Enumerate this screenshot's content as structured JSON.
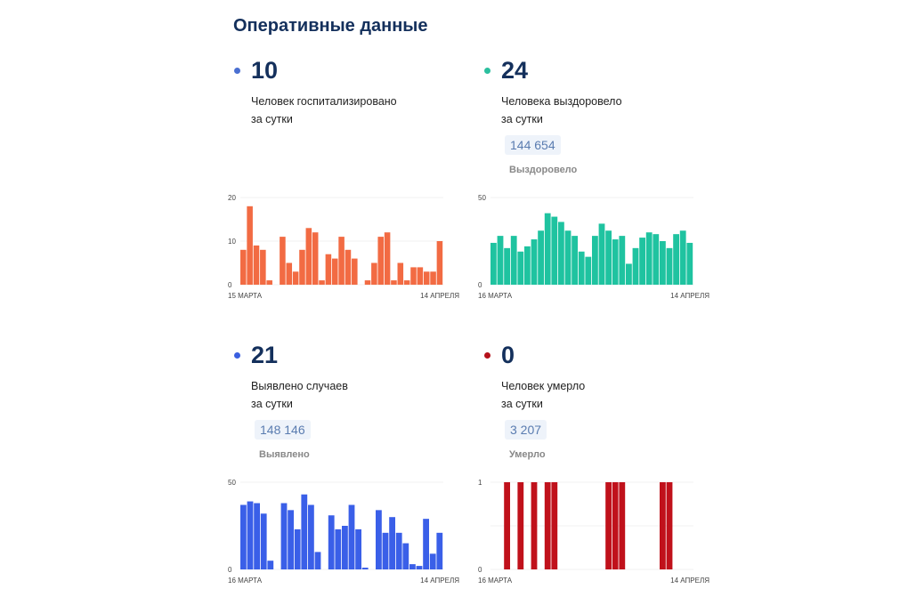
{
  "title": "Оперативные данные",
  "panels": [
    {
      "value": "10",
      "line1": "Человек госпитализировано",
      "line2": "за сутки",
      "dot_color": "#4a6fd1"
    },
    {
      "value": "24",
      "line1": "Человека выздоровело",
      "line2": "за сутки",
      "total": "144 654",
      "total_label": "Выздоровело",
      "dot_color": "#2bbf9e"
    },
    {
      "value": "21",
      "line1": "Выявлено случаев",
      "line2": "за сутки",
      "total": "148 146",
      "total_label": "Выявлено",
      "dot_color": "#3a5fe0"
    },
    {
      "value": "0",
      "line1": "Человек умерло",
      "line2": "за сутки",
      "total": "3 207",
      "total_label": "Умерло",
      "dot_color": "#b5121b"
    }
  ],
  "chart_data": [
    {
      "type": "bar",
      "color": "#f26b43",
      "ylim": [
        0,
        20
      ],
      "yticks": [
        "0",
        "10",
        "20"
      ],
      "x_start": "15 МАРТА",
      "x_end": "14 АПРЕЛЯ",
      "values": [
        8,
        18,
        9,
        8,
        1,
        0,
        11,
        5,
        3,
        8,
        13,
        12,
        1,
        7,
        6,
        11,
        8,
        6,
        0,
        1,
        5,
        11,
        12,
        1,
        5,
        1,
        4,
        4,
        3,
        3,
        10
      ]
    },
    {
      "type": "bar",
      "color": "#1fc3a0",
      "ylim": [
        0,
        50
      ],
      "yticks": [
        "0",
        "50"
      ],
      "x_start": "16 МАРТА",
      "x_end": "14 АПРЕЛЯ",
      "values": [
        24,
        28,
        21,
        28,
        19,
        22,
        26,
        31,
        41,
        39,
        36,
        31,
        28,
        19,
        16,
        28,
        35,
        31,
        26,
        28,
        12,
        21,
        27,
        30,
        29,
        25,
        21,
        29,
        31,
        24
      ]
    },
    {
      "type": "bar",
      "color": "#3a5fe8",
      "ylim": [
        0,
        50
      ],
      "yticks": [
        "0",
        "50"
      ],
      "x_start": "16 МАРТА",
      "x_end": "14 АПРЕЛЯ",
      "values": [
        37,
        39,
        38,
        32,
        5,
        0,
        38,
        34,
        23,
        43,
        37,
        10,
        0,
        31,
        23,
        25,
        37,
        23,
        1,
        0,
        34,
        21,
        30,
        21,
        15,
        3,
        2,
        29,
        9,
        21
      ]
    },
    {
      "type": "bar",
      "color": "#c0111b",
      "ylim": [
        0,
        1
      ],
      "yticks": [
        "0",
        "1"
      ],
      "x_start": "16 МАРТА",
      "x_end": "14 АПРЕЛЯ",
      "values": [
        0,
        0,
        1,
        0,
        1,
        0,
        1,
        0,
        1,
        1,
        0,
        0,
        0,
        0,
        0,
        0,
        0,
        1,
        1,
        1,
        0,
        0,
        0,
        0,
        0,
        1,
        1,
        0,
        0,
        0
      ]
    }
  ]
}
